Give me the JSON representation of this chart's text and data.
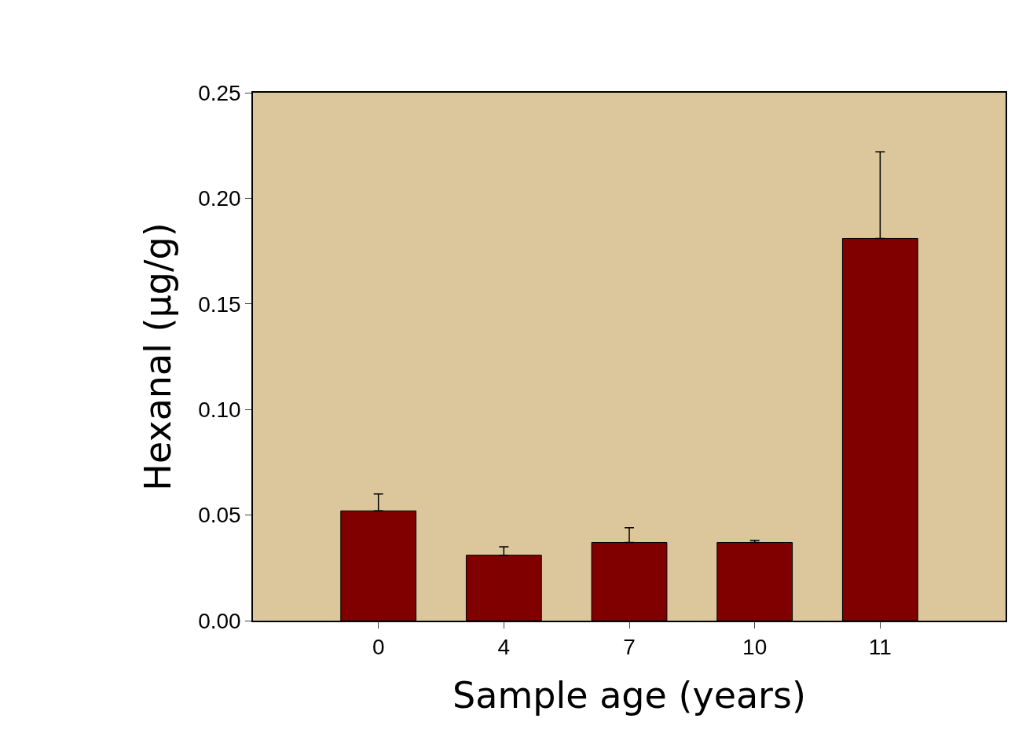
{
  "chart_data": {
    "type": "bar",
    "xlabel": "Sample age (years)",
    "ylabel": "Hexanal (µg/g)",
    "categories": [
      "0",
      "4",
      "7",
      "10",
      "11"
    ],
    "values": [
      0.052,
      0.031,
      0.037,
      0.037,
      0.181
    ],
    "errors": [
      [
        0.052,
        0.06
      ],
      [
        0.031,
        0.035
      ],
      [
        0.037,
        0.044
      ],
      [
        0.037,
        0.038
      ],
      [
        0.181,
        0.222
      ]
    ],
    "color": "#800000",
    "ylim": [
      0,
      0.25
    ],
    "yticks": [
      {
        "value": 0,
        "label": "0.00"
      },
      {
        "value": 0.05,
        "label": "0.05"
      },
      {
        "value": 0.1,
        "label": "0.10"
      },
      {
        "value": 0.15,
        "label": "0.15"
      },
      {
        "value": 0.2,
        "label": "0.20"
      },
      {
        "value": 0.25,
        "label": "0.25"
      }
    ],
    "grid": false,
    "legend": false
  }
}
